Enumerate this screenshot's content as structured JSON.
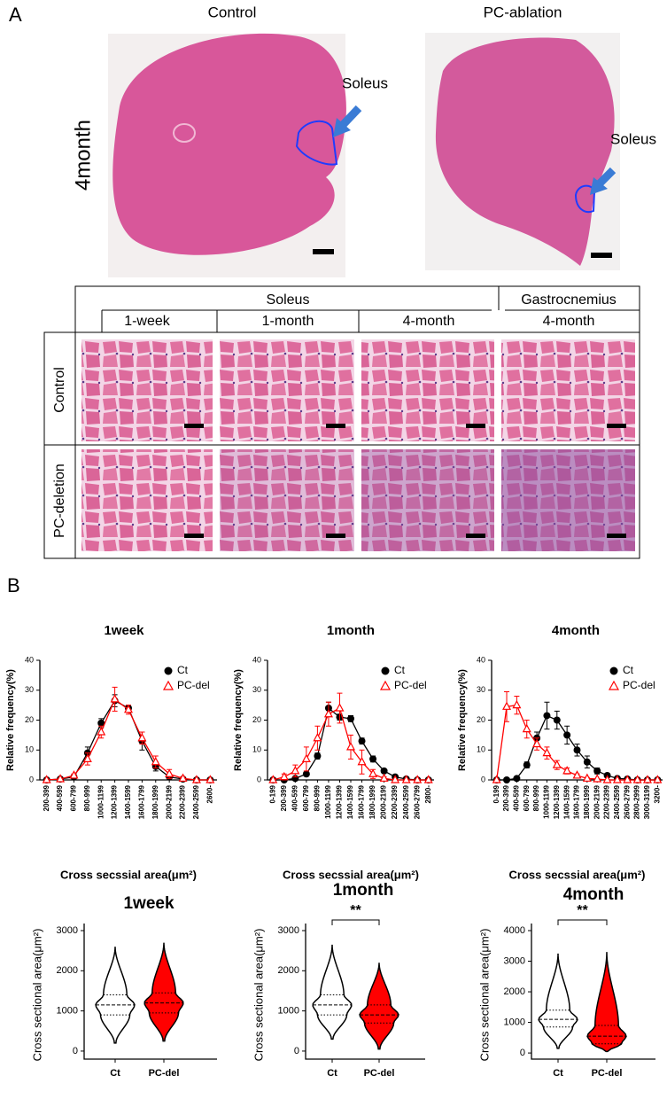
{
  "panel_a": {
    "label": "A",
    "columns": [
      "Control",
      "PC-ablation"
    ],
    "row_label": "4month",
    "soleus_labels": [
      "Soleus",
      "Soleus"
    ],
    "table": {
      "groups": [
        "Soleus",
        "Gastrocnemius"
      ],
      "timepoints": [
        "1-week",
        "1-month",
        "4-month",
        "4-month"
      ],
      "rows": [
        "Control",
        "PC-deletion"
      ]
    }
  },
  "panel_b": {
    "label": "B"
  },
  "chart_data": [
    {
      "type": "line",
      "title": "1week",
      "ylabel": "Relative frequency(%)",
      "xlabel": "Cross secssial area(μm²)",
      "categories": [
        "200-399",
        "400-599",
        "600-799",
        "800-999",
        "1000-1199",
        "1200-1399",
        "1400-1599",
        "1600-1799",
        "1800-1999",
        "2000-2199",
        "2200-2399",
        "2400-2599",
        "2600-"
      ],
      "ylim": [
        0,
        40
      ],
      "yticks": [
        0,
        10,
        20,
        30,
        40
      ],
      "legend": "upper right",
      "series": [
        {
          "name": "Ct",
          "color": "#000000",
          "marker": "circle",
          "values": [
            0,
            0.3,
            1,
            9,
            19,
            26.5,
            24,
            13,
            4.5,
            1,
            0.3,
            0,
            0
          ],
          "errors": [
            0,
            0.2,
            0.5,
            2,
            1.5,
            2,
            1,
            3,
            1.5,
            0.5,
            0.2,
            0,
            0
          ]
        },
        {
          "name": "PC-del",
          "color": "#ff0000",
          "marker": "triangle",
          "values": [
            0,
            0.3,
            1.5,
            7,
            16,
            27,
            23.5,
            14,
            6,
            2,
            0.5,
            0,
            0
          ],
          "errors": [
            0,
            0.2,
            0.5,
            2,
            2,
            4,
            1.5,
            2,
            2,
            1.5,
            0.5,
            0,
            0
          ]
        }
      ]
    },
    {
      "type": "line",
      "title": "1month",
      "ylabel": "Relative frequency(%)",
      "xlabel": "Cross secssial area(μm²)",
      "categories": [
        "0-199",
        "200-399",
        "400-599",
        "600-799",
        "800-999",
        "1000-1199",
        "1200-1399",
        "1400-1599",
        "1600-1799",
        "1800-1999",
        "2000-2199",
        "2200-2399",
        "2400-2599",
        "2600-2799",
        "2800-"
      ],
      "ylim": [
        0,
        40
      ],
      "yticks": [
        0,
        10,
        20,
        30,
        40
      ],
      "legend": "upper right",
      "series": [
        {
          "name": "Ct",
          "color": "#000000",
          "marker": "circle",
          "values": [
            0,
            0,
            0.5,
            2,
            8,
            24,
            21,
            20.5,
            13,
            7,
            3,
            1,
            0.3,
            0,
            0
          ],
          "errors": [
            0,
            0,
            0.3,
            0.5,
            1,
            2,
            1,
            1,
            1,
            1,
            0.5,
            0.3,
            0,
            0,
            0
          ]
        },
        {
          "name": "PC-del",
          "color": "#ff0000",
          "marker": "triangle",
          "values": [
            0,
            1,
            3,
            7,
            14,
            22,
            24,
            11,
            6,
            2,
            0.5,
            0,
            0,
            0,
            0
          ],
          "errors": [
            0,
            1,
            2,
            4,
            4,
            4,
            5,
            4,
            4,
            1.5,
            0.5,
            0,
            0,
            0,
            0
          ]
        }
      ]
    },
    {
      "type": "line",
      "title": "4month",
      "ylabel": "Relative frequency(%)",
      "xlabel": "Cross secssial area(μm²)",
      "categories": [
        "0-199",
        "200-399",
        "400-599",
        "600-799",
        "800-999",
        "1000-1199",
        "1200-1399",
        "1400-1599",
        "1600-1799",
        "1800-1999",
        "2000-2199",
        "2200-2399",
        "2400-2599",
        "2600-2799",
        "2800-2999",
        "3000-3199",
        "3200-"
      ],
      "ylim": [
        0,
        40
      ],
      "yticks": [
        0,
        10,
        20,
        30,
        40
      ],
      "legend": "upper right",
      "series": [
        {
          "name": "Ct",
          "color": "#000000",
          "marker": "circle",
          "values": [
            0,
            0,
            0.5,
            5,
            14,
            21.5,
            20,
            15,
            10,
            6,
            3,
            1.5,
            0.5,
            0.3,
            0,
            0,
            0
          ],
          "errors": [
            0,
            0,
            0.3,
            1,
            2,
            4.5,
            3,
            3,
            2,
            2,
            1,
            0.5,
            0.3,
            0,
            0,
            0,
            0
          ]
        },
        {
          "name": "PC-del",
          "color": "#ff0000",
          "marker": "triangle",
          "values": [
            0,
            24.5,
            25,
            17,
            12,
            9,
            5,
            3,
            1.5,
            0.5,
            0.3,
            0,
            0,
            0,
            0,
            0,
            0
          ],
          "errors": [
            0,
            5,
            3,
            3,
            2,
            2,
            1.5,
            1,
            0.5,
            0.3,
            0,
            0,
            0,
            0,
            0,
            0,
            0
          ]
        }
      ]
    },
    {
      "type": "violin",
      "title": "1week",
      "ylabel": "Cross sectional area(μm²)",
      "ylim": [
        -200,
        3000
      ],
      "yticks": [
        0,
        1000,
        2000,
        3000
      ],
      "violins": [
        {
          "name": "Ct",
          "color": "#ffffff",
          "min": 200,
          "q1": 900,
          "median": 1150,
          "q3": 1400,
          "max": 2600
        },
        {
          "name": "PC-del",
          "color": "#ff0000",
          "min": 250,
          "q1": 950,
          "median": 1200,
          "q3": 1450,
          "max": 2700
        }
      ]
    },
    {
      "type": "violin",
      "title": "1month",
      "ylabel": "Cross sectional area(μm²)",
      "ylim": [
        -200,
        3000
      ],
      "yticks": [
        0,
        1000,
        2000,
        3000
      ],
      "annotation": "**",
      "violins": [
        {
          "name": "Ct",
          "color": "#ffffff",
          "min": 300,
          "q1": 900,
          "median": 1150,
          "q3": 1400,
          "max": 2650
        },
        {
          "name": "PC-del",
          "color": "#ff0000",
          "min": 50,
          "q1": 700,
          "median": 900,
          "q3": 1150,
          "max": 2200
        }
      ]
    },
    {
      "type": "violin",
      "title": "4month",
      "ylabel": "Cross sectional area(μm²)",
      "ylim": [
        -200,
        4000
      ],
      "yticks": [
        0,
        1000,
        2000,
        3000,
        4000
      ],
      "annotation": "**",
      "violins": [
        {
          "name": "Ct",
          "color": "#ffffff",
          "min": 150,
          "q1": 850,
          "median": 1100,
          "q3": 1400,
          "max": 3250
        },
        {
          "name": "PC-del",
          "color": "#ff0000",
          "min": 50,
          "q1": 300,
          "median": 550,
          "q3": 900,
          "max": 3300
        }
      ]
    }
  ]
}
